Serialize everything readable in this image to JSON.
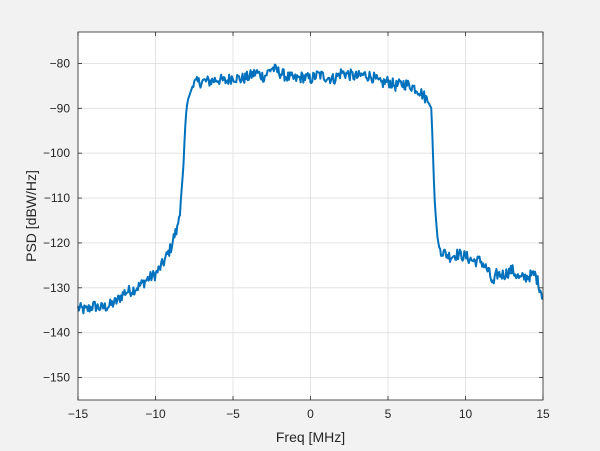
{
  "chart_data": {
    "type": "line",
    "title": "",
    "xlabel": "Freq [MHz]",
    "ylabel": "PSD [dBW/Hz]",
    "xlim": [
      -15,
      15
    ],
    "ylim": [
      -155,
      -73
    ],
    "xticks": [
      -15,
      -10,
      -5,
      0,
      5,
      10,
      15
    ],
    "yticks": [
      -150,
      -140,
      -130,
      -120,
      -110,
      -100,
      -90,
      -80
    ],
    "grid": true,
    "legend": "none",
    "colors": {
      "line": "#0072bd",
      "grid": "#dfdfdf",
      "axes_bg": "#ffffff",
      "figure_bg": "#f2f2f2",
      "text": "#262626"
    },
    "series": [
      {
        "x": [
          -15,
          -14.5,
          -14,
          -13.5,
          -13,
          -12.5,
          -12,
          -11.5,
          -11,
          -10.5,
          -10,
          -9.5,
          -9,
          -8.8,
          -8.6,
          -8.4,
          -8.2,
          -8.1,
          -8.0,
          -7.9,
          -7.8,
          -7.7,
          -7.6,
          -7.5,
          -7,
          -6.5,
          -6,
          -5.5,
          -5,
          -4.5,
          -4,
          -3.5,
          -3,
          -2.5,
          -2,
          -1.5,
          -1,
          -0.5,
          0,
          0.5,
          1,
          1.5,
          2,
          2.5,
          3,
          3.5,
          4,
          4.5,
          5,
          5.5,
          6,
          6.5,
          7,
          7.5,
          7.8,
          7.9,
          8.0,
          8.1,
          8.2,
          8.3,
          8.5,
          9,
          9.5,
          10,
          10.5,
          11,
          11.5,
          11.8,
          12,
          12.5,
          13,
          13.5,
          14,
          14.5,
          15
        ],
        "y": [
          -134.5,
          -135,
          -134,
          -134.5,
          -134,
          -133,
          -131,
          -130.5,
          -129.5,
          -128,
          -127,
          -124.5,
          -121,
          -118.5,
          -117,
          -112,
          -103,
          -95,
          -90,
          -88,
          -87,
          -86,
          -85,
          -84.5,
          -84,
          -84,
          -83.5,
          -84,
          -83,
          -83.5,
          -83,
          -82,
          -83,
          -81,
          -82,
          -83,
          -83.5,
          -83,
          -83.5,
          -82.5,
          -83,
          -83.5,
          -82,
          -82.5,
          -83,
          -82.5,
          -83,
          -84.5,
          -84,
          -85,
          -84.5,
          -85,
          -86,
          -88,
          -90,
          -100,
          -110,
          -115,
          -119,
          -121,
          -122,
          -123,
          -122.5,
          -123,
          -124,
          -124,
          -126.5,
          -129.5,
          -127,
          -127,
          -126,
          -128,
          -127.5,
          -127,
          -132
        ]
      }
    ]
  }
}
